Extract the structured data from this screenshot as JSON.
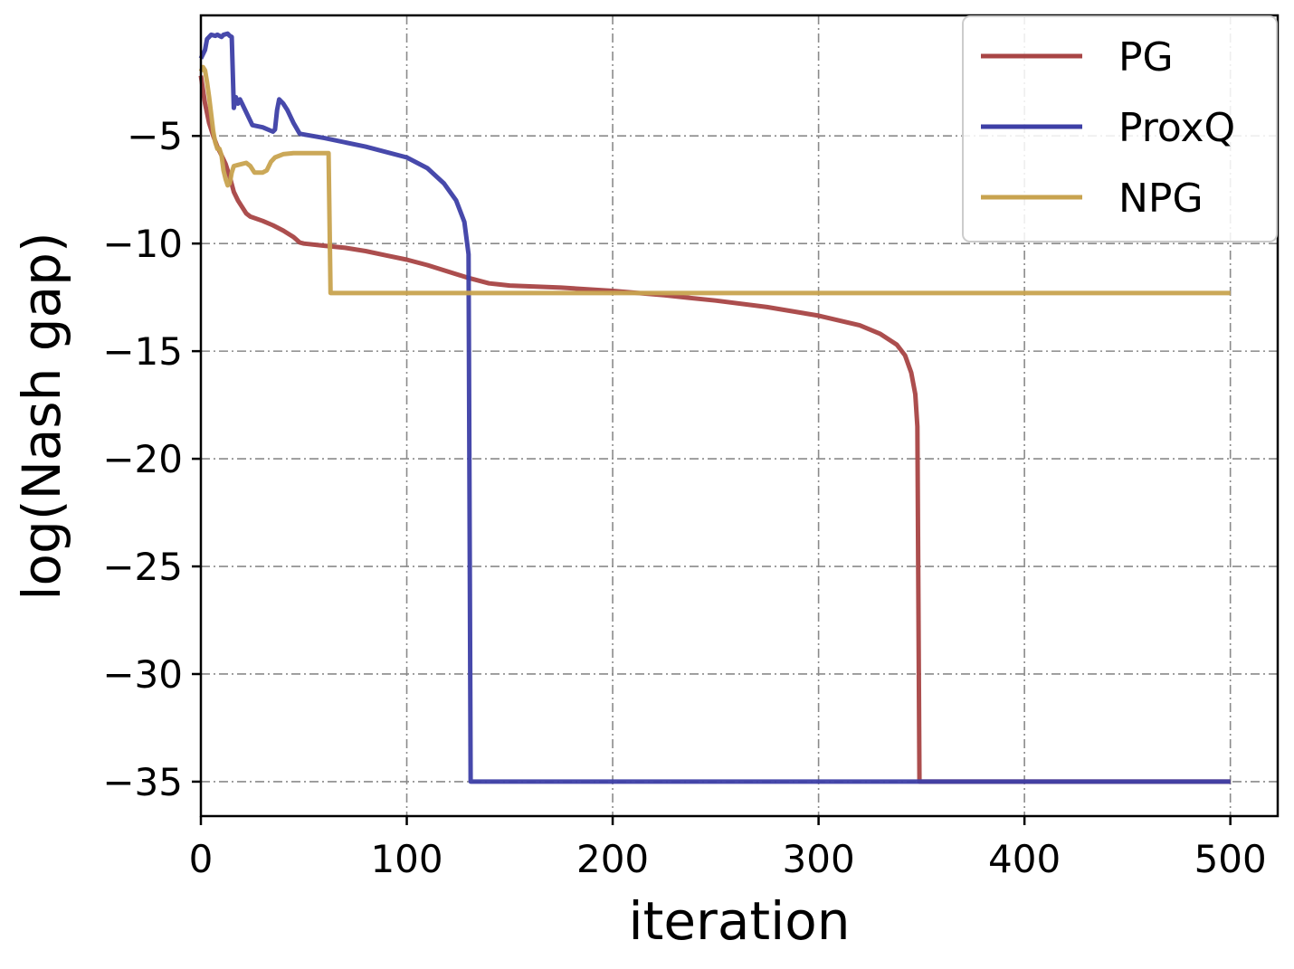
{
  "chart_data": {
    "type": "line",
    "xlabel": "iteration",
    "ylabel": "log(Nash gap)",
    "xlim": [
      0,
      523
    ],
    "ylim": [
      -36.6,
      0.6
    ],
    "xticks": [
      0,
      100,
      200,
      300,
      400,
      500
    ],
    "yticks": [
      -5,
      -10,
      -15,
      -20,
      -25,
      -30,
      -35
    ],
    "grid": true,
    "legend_position": "top-right",
    "series": [
      {
        "name": "PG",
        "color": "#a84545",
        "points": [
          [
            0,
            -2.2
          ],
          [
            2,
            -3.5
          ],
          [
            4,
            -4.4
          ],
          [
            6,
            -5.0
          ],
          [
            8,
            -5.5
          ],
          [
            10,
            -5.9
          ],
          [
            12,
            -6.3
          ],
          [
            14,
            -6.9
          ],
          [
            16,
            -7.6
          ],
          [
            18,
            -8.0
          ],
          [
            20,
            -8.3
          ],
          [
            22,
            -8.6
          ],
          [
            24,
            -8.75
          ],
          [
            30,
            -8.95
          ],
          [
            35,
            -9.15
          ],
          [
            40,
            -9.4
          ],
          [
            45,
            -9.7
          ],
          [
            48,
            -9.95
          ],
          [
            50,
            -10.0
          ],
          [
            60,
            -10.1
          ],
          [
            70,
            -10.2
          ],
          [
            80,
            -10.35
          ],
          [
            90,
            -10.55
          ],
          [
            100,
            -10.75
          ],
          [
            110,
            -11.0
          ],
          [
            120,
            -11.3
          ],
          [
            130,
            -11.6
          ],
          [
            140,
            -11.85
          ],
          [
            145,
            -11.9
          ],
          [
            150,
            -11.95
          ],
          [
            175,
            -12.05
          ],
          [
            200,
            -12.2
          ],
          [
            225,
            -12.4
          ],
          [
            250,
            -12.65
          ],
          [
            275,
            -12.95
          ],
          [
            300,
            -13.35
          ],
          [
            320,
            -13.8
          ],
          [
            330,
            -14.2
          ],
          [
            338,
            -14.7
          ],
          [
            342,
            -15.2
          ],
          [
            345,
            -16.0
          ],
          [
            347,
            -17.0
          ],
          [
            348,
            -18.5
          ],
          [
            349,
            -35.0
          ],
          [
            500,
            -35.0
          ]
        ]
      },
      {
        "name": "ProxQ",
        "color": "#3d3fa6",
        "points": [
          [
            0,
            -1.4
          ],
          [
            2,
            -1.0
          ],
          [
            3,
            -0.5
          ],
          [
            5,
            -0.3
          ],
          [
            7,
            -0.35
          ],
          [
            8,
            -0.3
          ],
          [
            10,
            -0.4
          ],
          [
            11,
            -0.3
          ],
          [
            13,
            -0.25
          ],
          [
            14,
            -0.35
          ],
          [
            15,
            -0.4
          ],
          [
            16,
            -3.7
          ],
          [
            17,
            -3.2
          ],
          [
            18,
            -3.5
          ],
          [
            19,
            -3.3
          ],
          [
            20,
            -3.5
          ],
          [
            25,
            -4.5
          ],
          [
            30,
            -4.6
          ],
          [
            35,
            -4.8
          ],
          [
            36,
            -4.7
          ],
          [
            37,
            -3.8
          ],
          [
            38,
            -3.3
          ],
          [
            40,
            -3.5
          ],
          [
            42,
            -3.8
          ],
          [
            45,
            -4.4
          ],
          [
            48,
            -4.9
          ],
          [
            60,
            -5.1
          ],
          [
            80,
            -5.5
          ],
          [
            100,
            -6.0
          ],
          [
            110,
            -6.5
          ],
          [
            118,
            -7.2
          ],
          [
            124,
            -8.0
          ],
          [
            128,
            -9.0
          ],
          [
            130,
            -10.5
          ],
          [
            131,
            -35.0
          ],
          [
            500,
            -35.0
          ]
        ]
      },
      {
        "name": "NPG",
        "color": "#c8a34f",
        "points": [
          [
            0,
            -2.0
          ],
          [
            1,
            -1.8
          ],
          [
            2,
            -1.95
          ],
          [
            3,
            -2.5
          ],
          [
            4,
            -3.2
          ],
          [
            5,
            -4.0
          ],
          [
            6,
            -4.8
          ],
          [
            7,
            -5.3
          ],
          [
            8,
            -5.6
          ],
          [
            9,
            -5.6
          ],
          [
            10,
            -5.9
          ],
          [
            11,
            -6.6
          ],
          [
            12,
            -7.0
          ],
          [
            13,
            -7.3
          ],
          [
            14,
            -7.2
          ],
          [
            15,
            -6.7
          ],
          [
            16,
            -6.4
          ],
          [
            18,
            -6.35
          ],
          [
            20,
            -6.3
          ],
          [
            22,
            -6.25
          ],
          [
            24,
            -6.4
          ],
          [
            26,
            -6.7
          ],
          [
            30,
            -6.7
          ],
          [
            32,
            -6.6
          ],
          [
            34,
            -6.2
          ],
          [
            36,
            -6.0
          ],
          [
            40,
            -5.85
          ],
          [
            45,
            -5.8
          ],
          [
            50,
            -5.8
          ],
          [
            55,
            -5.8
          ],
          [
            62,
            -5.8
          ],
          [
            63,
            -12.3
          ],
          [
            500,
            -12.3
          ]
        ]
      }
    ]
  }
}
